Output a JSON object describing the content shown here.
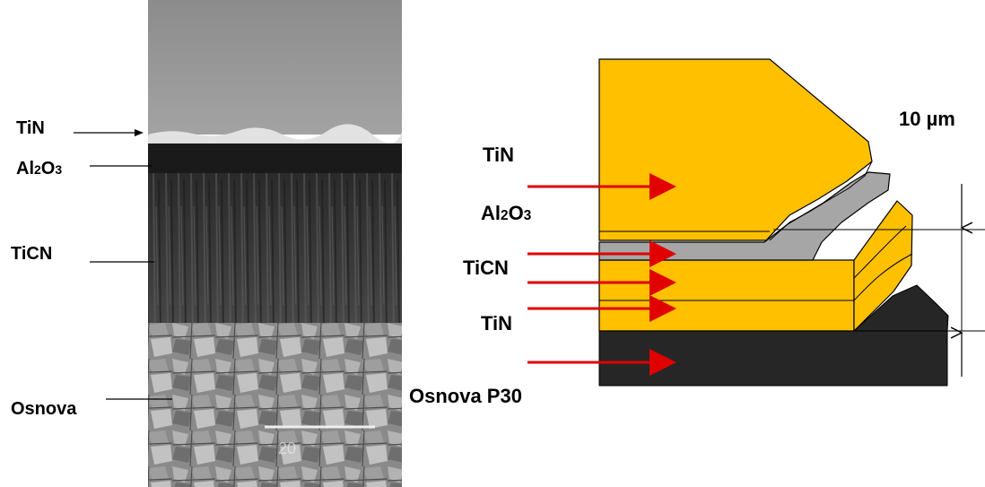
{
  "micrograph": {
    "labels": {
      "tin": "TiN",
      "al2o3_base": "Al",
      "al2o3_sub2": "2",
      "al2o3_o": "O",
      "al2o3_sub3": "3",
      "ticn": "TiCN",
      "osnova": "Osnova"
    },
    "scale_bar_text": "20"
  },
  "schematic": {
    "labels": {
      "tin_top": "TiN",
      "al2o3_base": "Al",
      "al2o3_sub2": "2",
      "al2o3_o": "O",
      "al2o3_sub3": "3",
      "ticn": "TiCN",
      "tin_bottom": "TiN",
      "substrate": "Osnova P30",
      "thickness": "10 µm"
    },
    "colors": {
      "tin": "#FFC000",
      "al2o3": "#A6A6A6",
      "substrate": "#262626",
      "arrow": "#E00000",
      "outline": "#000000"
    }
  }
}
